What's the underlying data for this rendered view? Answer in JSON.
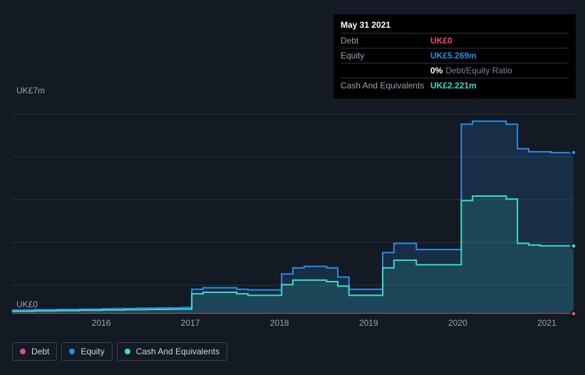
{
  "tooltip": {
    "date": "May 31 2021",
    "rows": [
      {
        "label": "Debt",
        "value": "UK£0",
        "cls": "v-debt"
      },
      {
        "label": "Equity",
        "value": "UK£5.269m",
        "cls": "v-equity"
      },
      {
        "label": "",
        "value": "0%",
        "cls": "v-ratio",
        "suffix": "Debt/Equity Ratio"
      },
      {
        "label": "Cash And Equivalents",
        "value": "UK£2.221m",
        "cls": "v-cash"
      }
    ]
  },
  "yaxis": {
    "top": "UK£7m",
    "bottom": "UK£0",
    "max": 7,
    "min": 0
  },
  "xaxis": {
    "ticks": [
      "2016",
      "2017",
      "2018",
      "2019",
      "2020",
      "2021"
    ]
  },
  "grid_color": "#2a3440",
  "series": {
    "debt": {
      "label": "Debt",
      "color": "#ec4a6f",
      "fill": "rgba(236,74,111,0.12)",
      "values": [
        0,
        0,
        0,
        0,
        0,
        0,
        0,
        0,
        0,
        0,
        0,
        0,
        0,
        0,
        0,
        0,
        0,
        0,
        0,
        0,
        0,
        0,
        0,
        0,
        0,
        0,
        0,
        0,
        0,
        0,
        0,
        0,
        0,
        0,
        0,
        0,
        0,
        0,
        0,
        0,
        0,
        0,
        0,
        0,
        0,
        0,
        0,
        0,
        0,
        0
      ]
    },
    "equity": {
      "label": "Equity",
      "color": "#2e8ae6",
      "fill": "rgba(46,138,230,0.18)",
      "values": [
        0.12,
        0.12,
        0.13,
        0.13,
        0.14,
        0.14,
        0.15,
        0.15,
        0.16,
        0.17,
        0.17,
        0.18,
        0.18,
        0.19,
        0.19,
        0.2,
        0.8,
        0.85,
        0.85,
        0.85,
        0.8,
        0.78,
        0.78,
        0.78,
        1.3,
        1.5,
        1.55,
        1.55,
        1.5,
        1.2,
        0.8,
        0.8,
        0.8,
        2.0,
        2.3,
        2.3,
        2.1,
        2.1,
        2.1,
        2.1,
        6.2,
        6.3,
        6.3,
        6.3,
        6.2,
        5.4,
        5.3,
        5.3,
        5.27,
        5.27
      ]
    },
    "cash": {
      "label": "Cash And Equivalents",
      "color": "#3dd9c4",
      "fill": "rgba(61,217,196,0.14)",
      "values": [
        0.08,
        0.08,
        0.09,
        0.09,
        0.1,
        0.1,
        0.11,
        0.11,
        0.12,
        0.12,
        0.13,
        0.13,
        0.14,
        0.14,
        0.15,
        0.15,
        0.65,
        0.7,
        0.7,
        0.7,
        0.65,
        0.6,
        0.6,
        0.6,
        0.95,
        1.1,
        1.1,
        1.1,
        1.05,
        0.9,
        0.6,
        0.6,
        0.6,
        1.5,
        1.75,
        1.75,
        1.6,
        1.6,
        1.6,
        1.6,
        3.7,
        3.85,
        3.85,
        3.85,
        3.75,
        2.3,
        2.25,
        2.22,
        2.22,
        2.22
      ]
    }
  },
  "legend": [
    {
      "label": "Debt",
      "color": "#ec4a6f"
    },
    {
      "label": "Equity",
      "color": "#2e8ae6"
    },
    {
      "label": "Cash And Equivalents",
      "color": "#3dd9c4"
    }
  ]
}
